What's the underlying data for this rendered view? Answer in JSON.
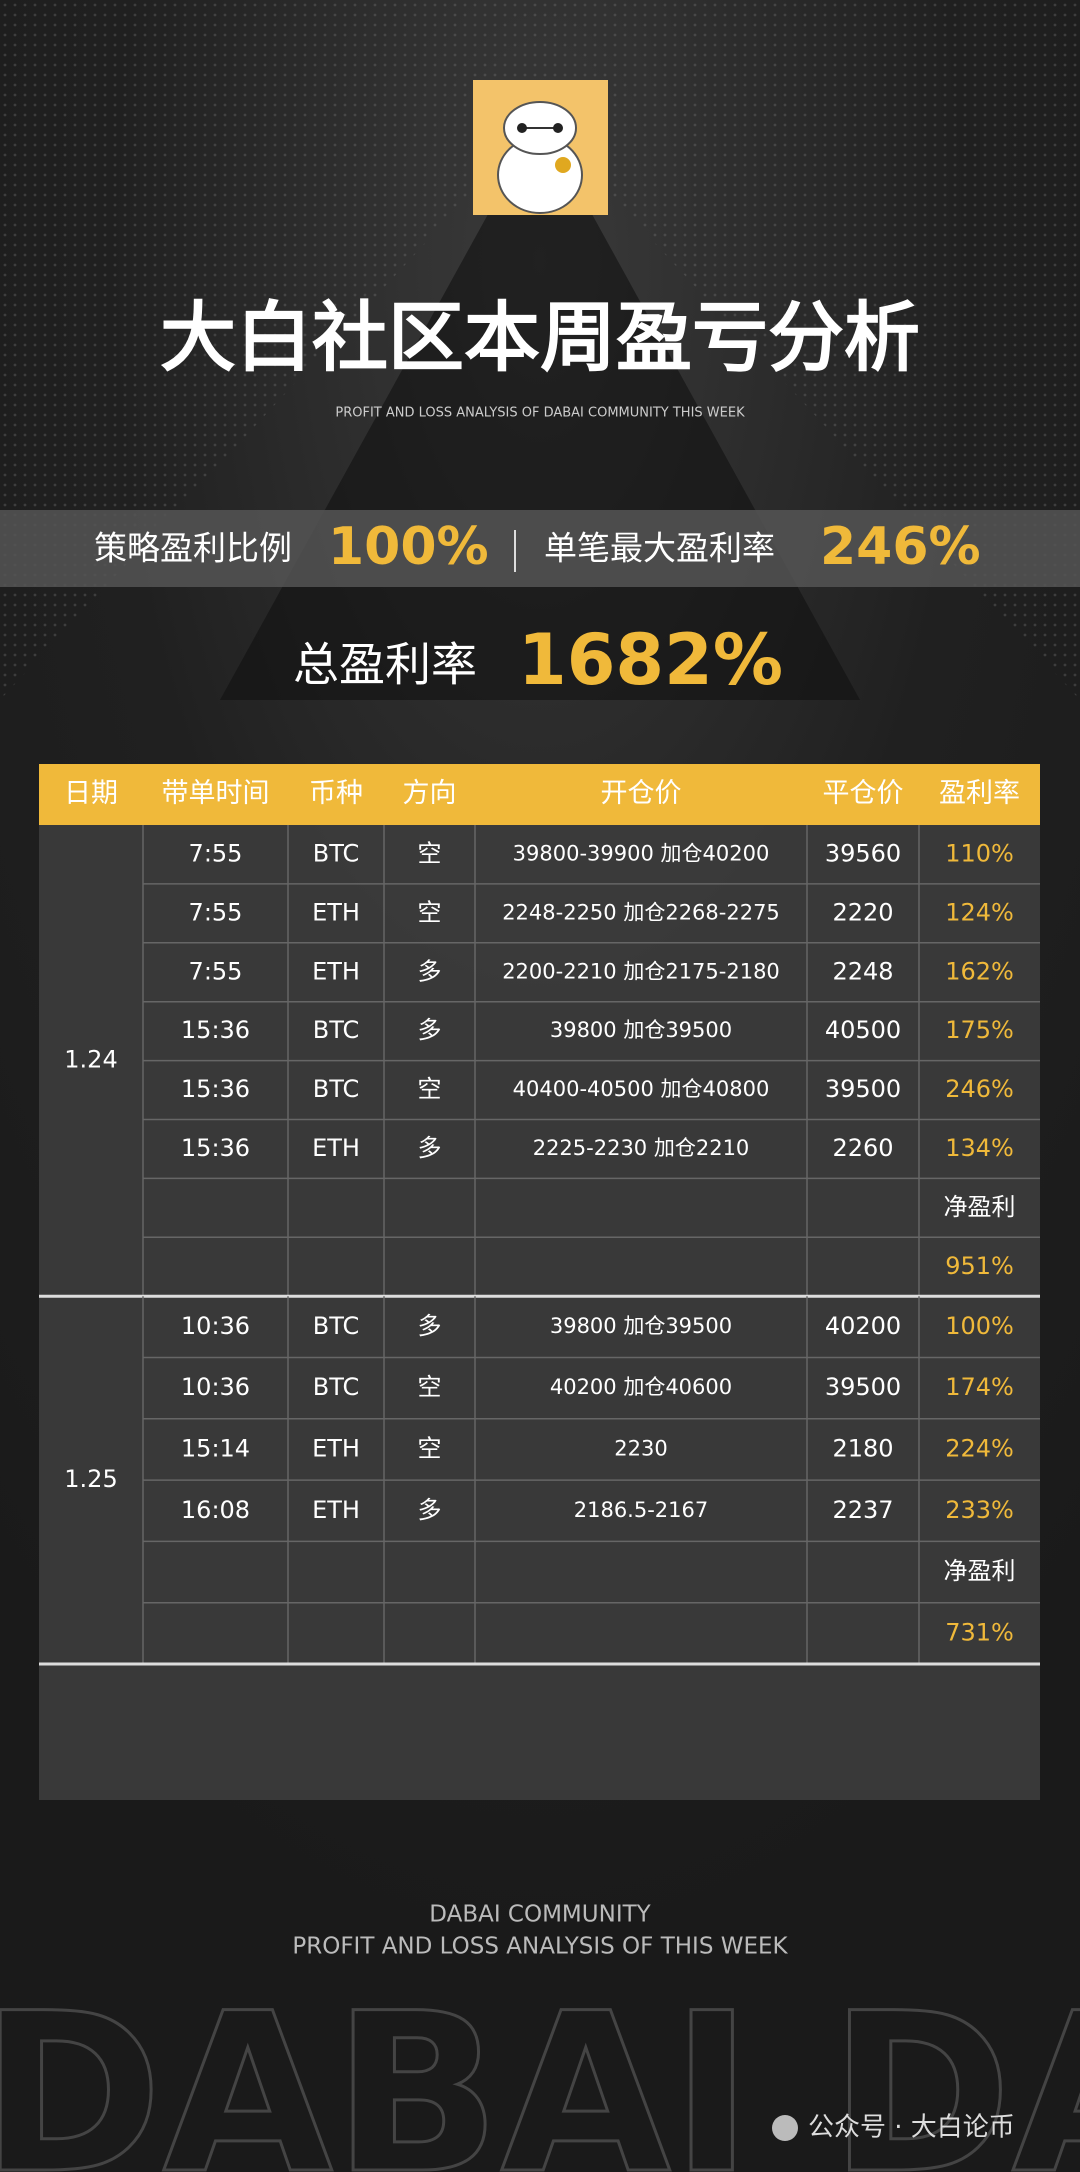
{
  "header": {
    "title": "大白社区本周盈亏分析",
    "subtitle": "PROFIT AND LOSS ANALYSIS OF DABAI COMMUNITY THIS WEEK"
  },
  "stats": {
    "ratio_label": "策略盈利比例",
    "ratio_value": "100%",
    "max_label": "单笔最大盈利率",
    "max_value": "246%",
    "total_label": "总盈利率",
    "total_value": "1682%"
  },
  "table": {
    "columns": [
      "日期",
      "带单时间",
      "币种",
      "方向",
      "开仓价",
      "平仓价",
      "盈利率"
    ],
    "groups": [
      {
        "date": "1.24",
        "trades": [
          [
            "7:55",
            "BTC",
            "空",
            "39800-39900 加仓40200",
            "39560",
            "110%"
          ],
          [
            "7:55",
            "ETH",
            "空",
            "2248-2250 加仓2268-2275",
            "2220",
            "124%"
          ],
          [
            "7:55",
            "ETH",
            "多",
            "2200-2210 加仓2175-2180",
            "2248",
            "162%"
          ],
          [
            "15:36",
            "BTC",
            "多",
            "39800 加仓39500",
            "40500",
            "175%"
          ],
          [
            "15:36",
            "BTC",
            "空",
            "40400-40500 加仓40800",
            "39500",
            "246%"
          ],
          [
            "15:36",
            "ETH",
            "多",
            "2225-2230 加仓2210",
            "2260",
            "134%"
          ]
        ],
        "summary_label": "净盈利",
        "summary_value": "951%"
      },
      {
        "date": "1.25",
        "trades": [
          [
            "10:36",
            "BTC",
            "多",
            "39800 加仓39500",
            "40200",
            "100%"
          ],
          [
            "10:36",
            "BTC",
            "空",
            "40200 加仓40600",
            "39500",
            "174%"
          ],
          [
            "15:14",
            "ETH",
            "空",
            "2230",
            "2180",
            "224%"
          ],
          [
            "16:08",
            "ETH",
            "多",
            "2186.5-2167",
            "2237",
            "233%"
          ]
        ],
        "summary_label": "净盈利",
        "summary_value": "731%"
      }
    ]
  },
  "footer": {
    "line1": "DABAI COMMUNITY",
    "line2": "PROFIT AND LOSS ANALYSIS OF THIS WEEK",
    "watermark_text": "DABAI DABAI",
    "account": "公众号 · 大白论币"
  }
}
